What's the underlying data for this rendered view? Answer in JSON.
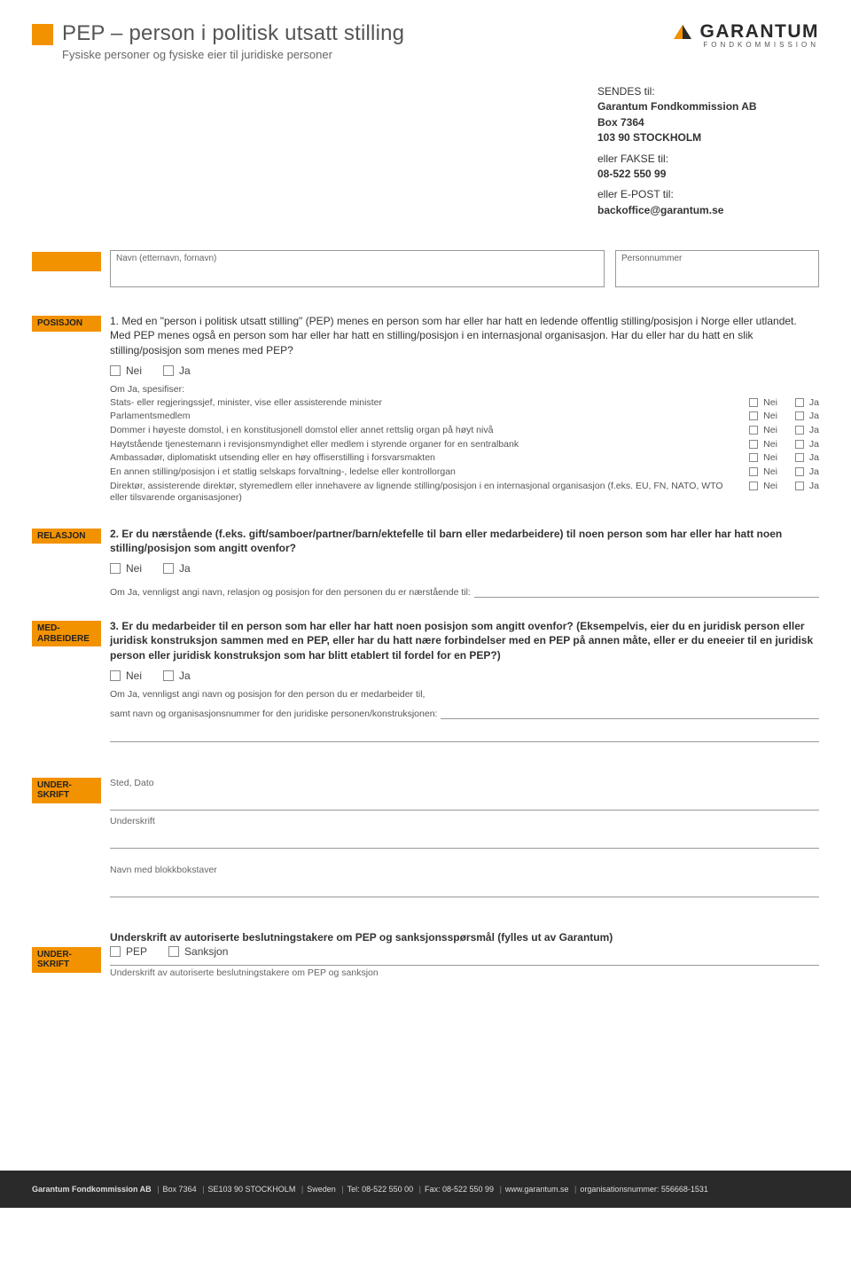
{
  "colors": {
    "accent": "#f39200",
    "text": "#333333",
    "muted": "#666666",
    "border": "#999999",
    "footer_bg": "#2a2a2a",
    "footer_text": "#dddddd"
  },
  "header": {
    "title": "PEP – person i politisk utsatt stilling",
    "subtitle": "Fysiske personer og fysiske eier til juridiske personer"
  },
  "logo": {
    "name": "GARANTUM",
    "sub": "FONDKOMMISSION"
  },
  "send": {
    "sendes_lbl": "SENDES til:",
    "line1": "Garantum Fondkommission AB",
    "line2": "Box 7364",
    "line3": "103 90 STOCKHOLM",
    "fakse_lbl": "eller FAKSE til:",
    "fakse_val": "08-522 550 99",
    "epost_lbl": "eller E-POST til:",
    "epost_val": "backoffice@garantum.se"
  },
  "fields": {
    "name_label": "Navn (etternavn, fornavn)",
    "pnr_label": "Personnummer"
  },
  "labels": {
    "posisjon": "POSISJON",
    "relasjon": "RELASJON",
    "medarbeidere": "MED-ARBEIDERE",
    "underskrift": "UNDER-SKRIFT",
    "nei": "Nei",
    "ja": "Ja",
    "pep": "PEP",
    "sanksjon": "Sanksjon"
  },
  "q1": {
    "text": "1. Med en \"person i politisk utsatt stilling\" (PEP) menes en person som har eller har hatt en ledende offentlig stilling/posisjon i Norge eller utlandet. Med PEP menes også en person som har eller har hatt en stilling/posisjon i en internasjonal organisasjon. Har du eller har du hatt en slik stilling/posisjon som menes med PEP?",
    "spec_head": "Om Ja,  spesifiser:",
    "items": [
      "Stats- eller regjeringssjef, minister, vise eller assisterende minister",
      "Parlamentsmedlem",
      "Dommer i høyeste domstol, i en konstitusjonell domstol eller annet rettslig organ på høyt nivå",
      "Høytstående tjenestemann i revisjonsmyndighet eller medlem i styrende organer for en sentralbank",
      "Ambassadør, diplomatiskt utsending eller en høy offiserstilling i forsvarsmakten",
      "En annen stilling/posisjon i et statlig selskaps forvaltning-, ledelse eller kontrollorgan",
      "Direktør, assisterende direktør, styremedlem eller innehavere av lignende stilling/posisjon i en internasjonal organisasjon (f.eks. EU, FN, NATO, WTO eller tilsvarende organisasjoner)"
    ]
  },
  "q2": {
    "text": "2. Er du nærstående (f.eks. gift/samboer/partner/barn/ektefelle til barn eller medarbeidere) til noen person som har eller har hatt noen stilling/posisjon som angitt ovenfor?",
    "followup": "Om Ja, vennligst angi navn, relasjon og posisjon for den personen du er nærstående til:"
  },
  "q3": {
    "text": "3. Er du medarbeider til en person som har eller har hatt noen posisjon som angitt ovenfor? (Eksempelvis, eier du en juridisk person eller juridisk konstruksjon sammen med en PEP, eller har du hatt nære forbindelser med en PEP på annen måte, eller er du eneeier til en juridisk person eller juridisk konstruksjon som har blitt etablert til fordel for en PEP?)",
    "followup1": "Om Ja, vennligst angi navn og posisjon for den person du er medarbeider til,",
    "followup2": "samt navn og organisasjonsnummer for den juridiske personen/konstruksjonen:"
  },
  "sig": {
    "sted": "Sted, Dato",
    "underskrift": "Underskrift",
    "navn_blokk": "Navn med blokkbokstaver"
  },
  "auth": {
    "heading": "Underskrift av autoriserte beslutningstakere om PEP og sanksjonsspørsmål (fylles ut av Garantum)",
    "sub": "Underskrift av autoriserte beslutningstakere om PEP og sanksjon"
  },
  "footer": {
    "company": "Garantum Fondkommission AB",
    "addr": "Box 7364",
    "post": "SE103 90 STOCKHOLM",
    "country": "Sweden",
    "tel": "Tel: 08-522 550 00",
    "fax": "Fax: 08-522 550 99",
    "web": "www.garantum.se",
    "org": "organisationsnummer: 556668-1531"
  }
}
